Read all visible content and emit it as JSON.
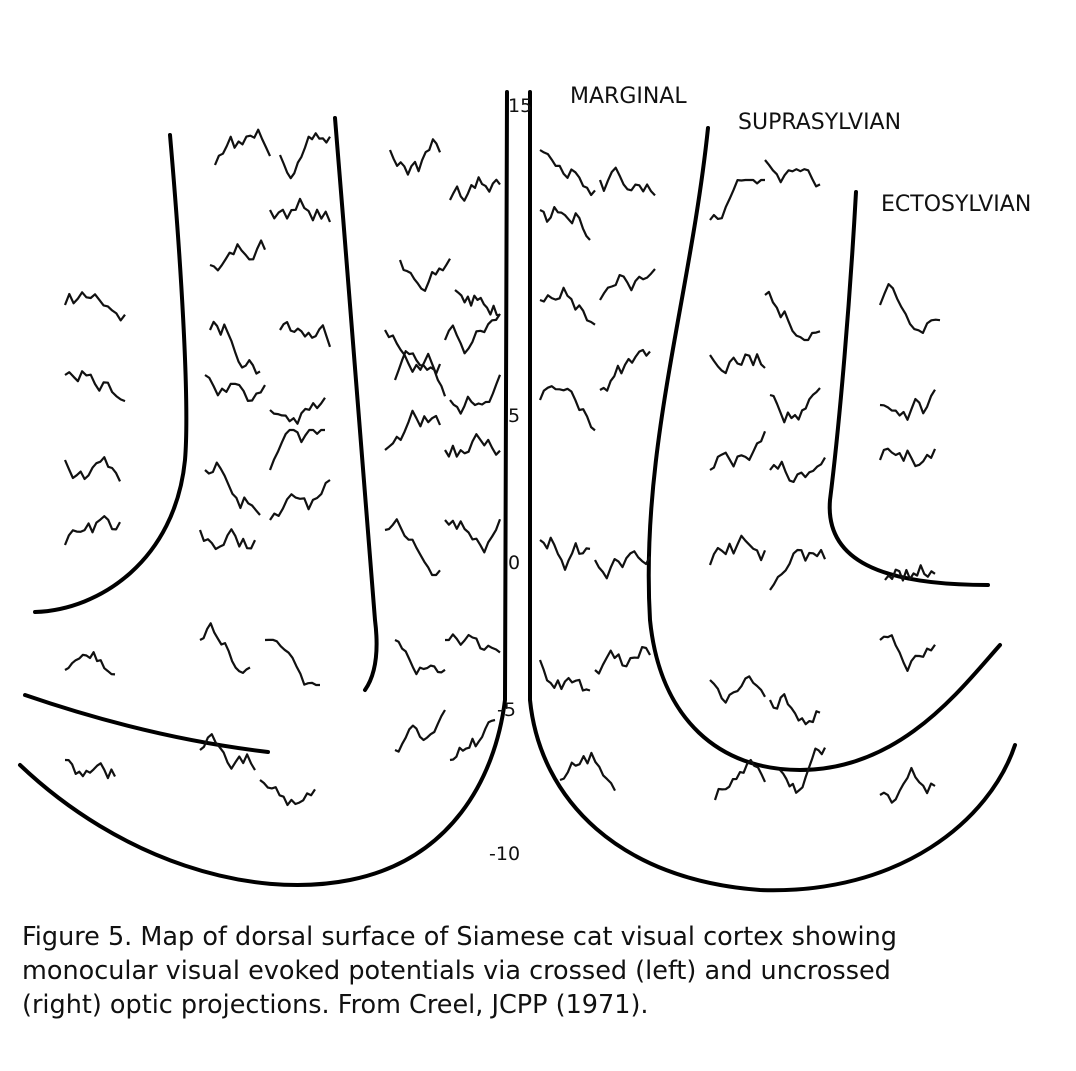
{
  "labels": {
    "marginal": "MARGINAL",
    "suprasylvian": "SUPRASYLVIAN",
    "ectosylvian": "ECTOSYLVIAN"
  },
  "scale": [
    15,
    5,
    0,
    -5,
    -10
  ],
  "caption": [
    "Figure 5. Map of dorsal surface of Siamese cat visual cortex showing",
    "monocular visual evoked potentials via crossed (left) and uncrossed",
    "(right) optic projections. From Creel, JCPP  (1971)."
  ]
}
